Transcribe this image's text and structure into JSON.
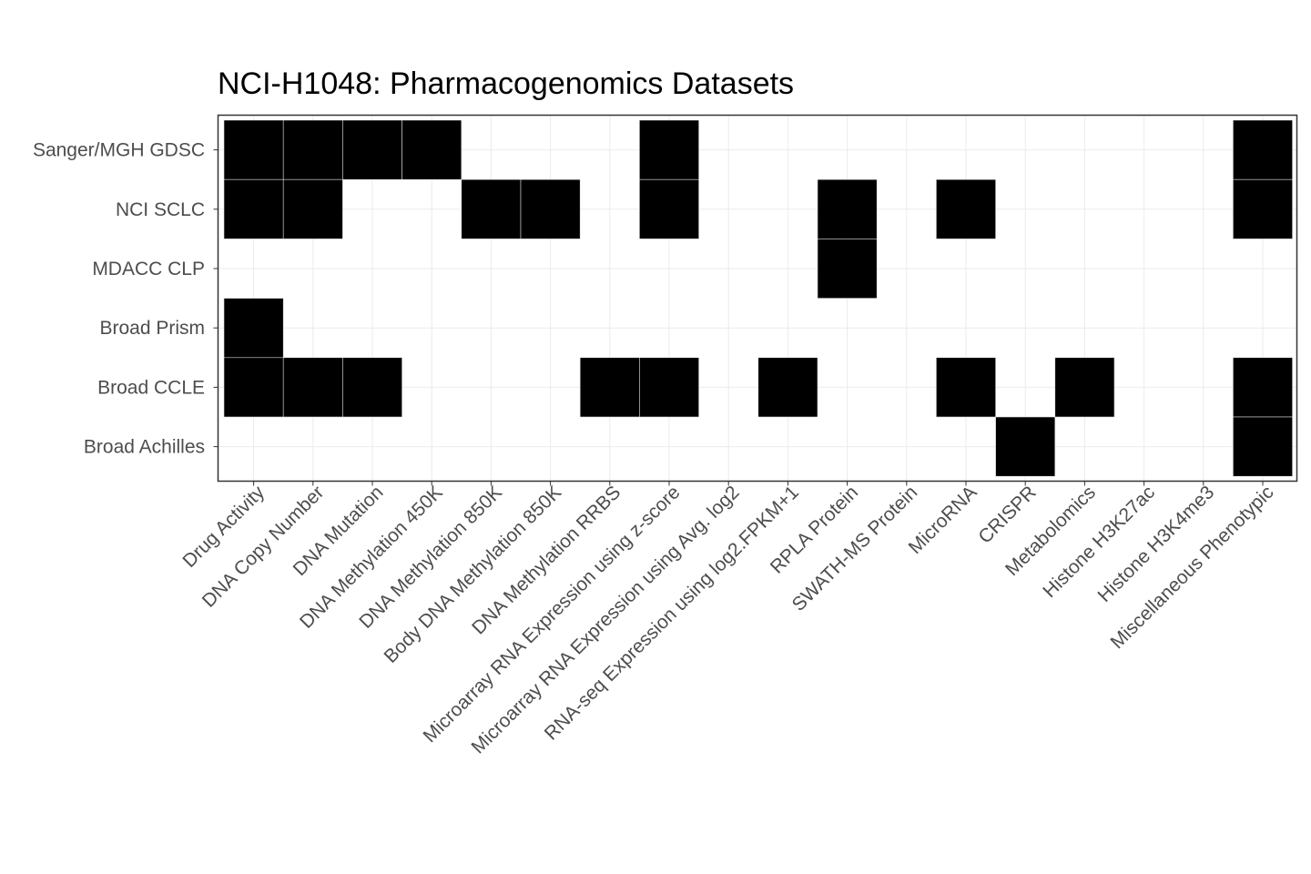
{
  "chart_data": {
    "type": "heatmap",
    "title": "NCI-H1048: Pharmacogenomics Datasets",
    "xlabel": "",
    "ylabel": "",
    "x_categories": [
      "Drug Activity",
      "DNA Copy Number",
      "DNA Mutation",
      "DNA Methylation 450K",
      "DNA Methylation 850K",
      "Body DNA Methylation 850K",
      "DNA Methylation RRBS",
      "Microarray RNA Expression using z-score",
      "Microarray RNA Expression using Avg. log2",
      "RNA-seq Expression using log2.FPKM+1",
      "RPLA Protein",
      "SWATH-MS Protein",
      "MicroRNA",
      "CRISPR",
      "Metabolomics",
      "Histone H3K27ac",
      "Histone H3K4me3",
      "Miscellaneous Phenotypic"
    ],
    "y_categories": [
      "Sanger/MGH GDSC",
      "NCI SCLC",
      "MDACC CLP",
      "Broad Prism",
      "Broad CCLE",
      "Broad Achilles"
    ],
    "matrix": [
      [
        1,
        1,
        1,
        1,
        0,
        0,
        0,
        1,
        0,
        0,
        0,
        0,
        0,
        0,
        0,
        0,
        0,
        1
      ],
      [
        1,
        1,
        0,
        0,
        1,
        1,
        0,
        1,
        0,
        0,
        1,
        0,
        1,
        0,
        0,
        0,
        0,
        1
      ],
      [
        0,
        0,
        0,
        0,
        0,
        0,
        0,
        0,
        0,
        0,
        1,
        0,
        0,
        0,
        0,
        0,
        0,
        0
      ],
      [
        1,
        0,
        0,
        0,
        0,
        0,
        0,
        0,
        0,
        0,
        0,
        0,
        0,
        0,
        0,
        0,
        0,
        0
      ],
      [
        1,
        1,
        1,
        0,
        0,
        0,
        1,
        1,
        0,
        1,
        0,
        0,
        1,
        0,
        1,
        0,
        0,
        1
      ],
      [
        0,
        0,
        0,
        0,
        0,
        0,
        0,
        0,
        0,
        0,
        0,
        0,
        0,
        1,
        0,
        0,
        0,
        1
      ]
    ],
    "colors": {
      "present": "#000000",
      "absent": "#ffffff",
      "grid": "#ebebeb",
      "border": "#333333",
      "tile_outline": "#d9d9d9"
    },
    "grid": true,
    "legend": "none"
  }
}
